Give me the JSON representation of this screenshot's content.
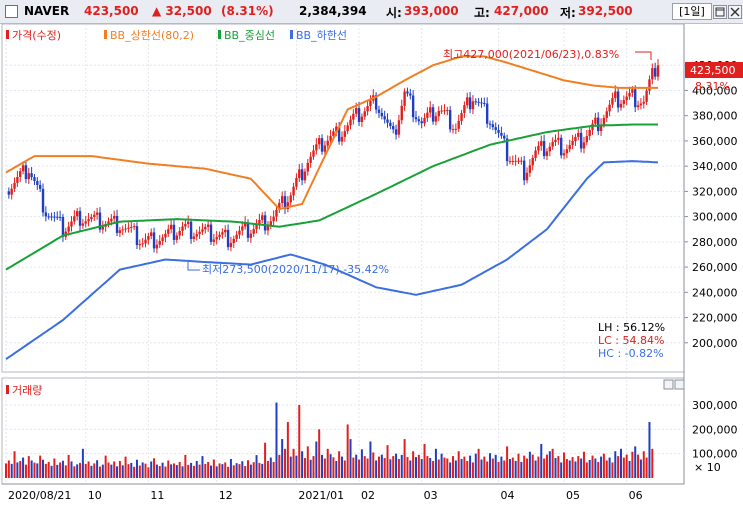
{
  "header": {
    "stock_name": "NAVER",
    "price": "423,500",
    "change": "▲ 32,500",
    "change_pct": "(8.31%)",
    "volume": "2,384,394",
    "open_label": "시:",
    "open": "393,000",
    "high_label": "고:",
    "high": "427,000",
    "low_label": "저:",
    "low": "392,500",
    "period": "[1일]"
  },
  "legend": {
    "price": "가격(수정)",
    "bb_upper": "BB_상한선(80,2)",
    "bb_middle": "BB_중심선",
    "bb_lower": "BB_하한선"
  },
  "annotations": {
    "high": "최고427,000(2021/06/23),0.83%",
    "low": "최저273,500(2020/11/17),-35.42%",
    "last_price": "423,500",
    "last_pct": "8.31%",
    "lh": "LH : 56.12%",
    "lc": "LC : 54.84%",
    "hc": "HC : -0.82%"
  },
  "volume_panel": {
    "title": "거래량",
    "unit_label": "× 10"
  },
  "colors": {
    "up": "#e0201e",
    "down": "#1f3fc0",
    "bb_upper": "#f07f24",
    "bb_middle": "#1aa038",
    "bb_lower": "#3a6fe0"
  },
  "chart_data": [
    {
      "type": "line",
      "title": "NAVER 가격(수정) with Bollinger Bands",
      "ylim": [
        180000,
        440000
      ],
      "y_ticks": [
        "420,000",
        "400,000",
        "380,000",
        "360,000",
        "340,000",
        "320,000",
        "300,000",
        "280,000",
        "260,000",
        "240,000",
        "220,000",
        "200,000"
      ],
      "x_ticks": [
        "2020/08/21",
        "10",
        "11",
        "12",
        "2021/01",
        "02",
        "03",
        "04",
        "05",
        "06"
      ],
      "x_tick_pos": [
        0,
        28,
        50,
        74,
        102,
        124,
        146,
        173,
        196,
        218
      ],
      "n_days": 230,
      "price": {
        "name": "가격(수정)",
        "days": [
          0,
          8,
          14,
          20,
          26,
          32,
          40,
          48,
          56,
          62,
          70,
          78,
          86,
          94,
          100,
          106,
          112,
          118,
          124,
          130,
          136,
          140,
          146,
          152,
          158,
          164,
          170,
          176,
          182,
          186,
          192,
          196,
          202,
          208,
          214,
          220,
          224,
          229
        ],
        "close": [
          320000,
          338000,
          305000,
          290000,
          300000,
          296000,
          294000,
          280000,
          284000,
          291000,
          287000,
          283000,
          290000,
          300000,
          318000,
          345000,
          360000,
          368000,
          381000,
          392000,
          362000,
          398000,
          374000,
          385000,
          372000,
          395000,
          378000,
          350000,
          336000,
          350000,
          358000,
          355000,
          360000,
          375000,
          392000,
          395000,
          391000,
          423500
        ]
      },
      "bb_upper": {
        "name": "BB_상한선(80,2)",
        "days": [
          0,
          10,
          30,
          50,
          70,
          86,
          96,
          104,
          112,
          120,
          130,
          140,
          150,
          160,
          168,
          176,
          186,
          196,
          206,
          216,
          224,
          229
        ],
        "values": [
          335000,
          348000,
          348000,
          342000,
          338000,
          330000,
          306000,
          310000,
          348000,
          385000,
          395000,
          408000,
          420000,
          427000,
          427000,
          422000,
          415000,
          408000,
          404000,
          402000,
          402000,
          402000
        ]
      },
      "bb_middle": {
        "name": "BB_중심선",
        "days": [
          0,
          20,
          40,
          60,
          80,
          96,
          110,
          130,
          150,
          170,
          190,
          206,
          220,
          229
        ],
        "values": [
          258000,
          285000,
          296000,
          298000,
          296000,
          292000,
          297000,
          318000,
          340000,
          357000,
          367000,
          372000,
          373000,
          373000
        ]
      },
      "bb_lower": {
        "name": "BB_하한선",
        "days": [
          0,
          20,
          40,
          56,
          70,
          86,
          100,
          112,
          130,
          144,
          160,
          176,
          190,
          204,
          210,
          220,
          229
        ],
        "values": [
          187000,
          218000,
          258000,
          266000,
          264000,
          262000,
          270000,
          262000,
          244000,
          238000,
          246000,
          266000,
          290000,
          330000,
          343000,
          344000,
          343000
        ]
      }
    },
    {
      "type": "bar",
      "title": "거래량",
      "ylim": [
        0,
        300000
      ],
      "y_ticks": [
        "300,000",
        "200,000",
        "100,000"
      ],
      "x_tick_pos": [
        0,
        28,
        50,
        74,
        102,
        124,
        146,
        173,
        196,
        218
      ],
      "series": [
        {
          "name": "거래량",
          "values": [
            60000,
            72000,
            58000,
            110000,
            64000,
            70000,
            84000,
            55000,
            90000,
            72000,
            63000,
            60000,
            92000,
            75000,
            58000,
            66000,
            50000,
            80000,
            54000,
            64000,
            71000,
            52000,
            95000,
            68000,
            48000,
            56000,
            62000,
            120000,
            58000,
            68000,
            50000,
            60000,
            73000,
            47000,
            55000,
            92000,
            64000,
            55000,
            68000,
            48000,
            70000,
            52000,
            88000,
            57000,
            62000,
            46000,
            75000,
            51000,
            64000,
            59000,
            44000,
            68000,
            81000,
            55000,
            49000,
            63000,
            47000,
            72000,
            56000,
            60000,
            53000,
            66000,
            48000,
            95000,
            54000,
            62000,
            50000,
            70000,
            55000,
            90000,
            58000,
            66000,
            51000,
            76000,
            48000,
            60000,
            57000,
            64000,
            46000,
            78000,
            52000,
            61000,
            57000,
            69000,
            49000,
            73000,
            55000,
            65000,
            94000,
            62000,
            58000,
            145000,
            70000,
            84000,
            66000,
            310000,
            95000,
            160000,
            120000,
            230000,
            88000,
            120000,
            92000,
            300000,
            110000,
            82000,
            130000,
            75000,
            90000,
            150000,
            200000,
            95000,
            80000,
            120000,
            98000,
            85000,
            70000,
            110000,
            88000,
            72000,
            220000,
            160000,
            84000,
            96000,
            76000,
            118000,
            90000,
            80000,
            150000,
            105000,
            72000,
            88000,
            96000,
            82000,
            135000,
            77000,
            90000,
            100000,
            78000,
            95000,
            160000,
            86000,
            72000,
            110000,
            86000,
            95000,
            78000,
            140000,
            90000,
            82000,
            70000,
            120000,
            76000,
            100000,
            84000,
            80000,
            64000,
            90000,
            72000,
            110000,
            78000,
            88000,
            70000,
            92000,
            64000,
            100000,
            120000,
            76000,
            88000,
            68000,
            102000,
            80000,
            95000,
            66000,
            88000,
            72000,
            130000,
            78000,
            84000,
            70000,
            100000,
            66000,
            92000,
            80000,
            108000,
            96000,
            72000,
            88000,
            140000,
            80000,
            96000,
            110000,
            120000,
            82000,
            90000,
            64000,
            105000,
            78000,
            72000,
            86000,
            68000,
            90000,
            80000,
            108000,
            64000,
            74000,
            92000,
            80000,
            66000,
            88000,
            100000,
            72000,
            84000,
            64000,
            110000,
            90000,
            120000,
            84000,
            96000,
            70000,
            108000,
            130000,
            96000,
            76000,
            110000,
            84000,
            230000,
            120000
          ]
        }
      ]
    }
  ]
}
